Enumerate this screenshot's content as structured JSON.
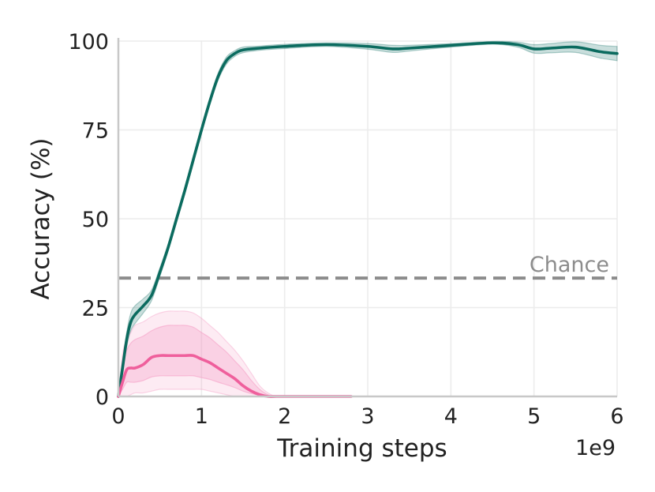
{
  "chart_data": {
    "type": "line",
    "xlabel": "Training steps",
    "ylabel": "Accuracy (%)",
    "x_offset_label": "1e9",
    "xlim": [
      0,
      6
    ],
    "ylim": [
      0,
      100
    ],
    "x_ticks": [
      0,
      1,
      2,
      3,
      4,
      5,
      6
    ],
    "y_ticks": [
      0,
      25,
      50,
      75,
      100
    ],
    "grid": true,
    "reference_line": {
      "label": "Chance",
      "y": 33.3,
      "color": "#8c8c8c",
      "style": "dashed"
    },
    "series": [
      {
        "color": "#0b6b5f",
        "band_color": "#0b6b5f",
        "x": [
          0,
          0.05,
          0.1,
          0.15,
          0.2,
          0.3,
          0.4,
          0.5,
          0.6,
          0.7,
          0.8,
          0.9,
          1.0,
          1.1,
          1.2,
          1.3,
          1.4,
          1.5,
          1.7,
          2.0,
          2.5,
          3.0,
          3.3,
          3.5,
          4.0,
          4.5,
          4.8,
          5.0,
          5.2,
          5.5,
          5.8,
          6.0
        ],
        "values": [
          0,
          8,
          16,
          21,
          23,
          25.5,
          28.5,
          35,
          42,
          50,
          58,
          66.5,
          75,
          83,
          90,
          94.5,
          96.5,
          97.5,
          98,
          98.5,
          99,
          98.5,
          97.8,
          98,
          98.8,
          99.5,
          99,
          97.8,
          98,
          98.3,
          97,
          96.5
        ],
        "band_width": [
          0,
          1,
          2,
          2.5,
          2.5,
          2,
          1.5,
          1.2,
          1,
          1,
          1,
          1,
          1,
          1,
          1,
          1,
          0.8,
          0.8,
          0.6,
          0.6,
          0.5,
          0.8,
          1,
          0.8,
          0.5,
          0.4,
          0.7,
          1.2,
          1.3,
          1.5,
          1.8,
          2
        ]
      },
      {
        "color": "#ef5f9c",
        "band_color": "#f48fbd",
        "x": [
          0,
          0.05,
          0.1,
          0.15,
          0.2,
          0.3,
          0.4,
          0.5,
          0.6,
          0.7,
          0.8,
          0.9,
          1.0,
          1.1,
          1.2,
          1.3,
          1.4,
          1.5,
          1.6,
          1.7,
          1.8,
          1.9,
          2.0,
          2.5,
          2.8
        ],
        "values": [
          0,
          4,
          7.5,
          8,
          8,
          9,
          11,
          11.5,
          11.5,
          11.5,
          11.5,
          11.5,
          10.5,
          9.5,
          8,
          6.5,
          5,
          3,
          1.5,
          0.5,
          0,
          0,
          0,
          0,
          0
        ],
        "band_low": [
          0,
          0,
          0,
          0.5,
          1,
          1,
          1.5,
          2,
          2,
          2,
          2,
          2,
          2,
          1.5,
          1,
          0.5,
          0,
          0,
          0,
          0,
          0,
          0,
          0,
          0,
          0
        ],
        "band_high": [
          0,
          12,
          16,
          18,
          20,
          21,
          22.5,
          23.5,
          24,
          24,
          24,
          23.5,
          22,
          20,
          18,
          15.5,
          13,
          10,
          6.5,
          3,
          1,
          0,
          0,
          0,
          0
        ],
        "band_mid_low": [
          0,
          2,
          4,
          4,
          4,
          4.5,
          5.5,
          5.8,
          5.8,
          5.8,
          5.8,
          5.8,
          5.3,
          4.8,
          4,
          3.3,
          2.5,
          1.5,
          0.8,
          0.3,
          0,
          0,
          0,
          0,
          0
        ],
        "band_mid_high": [
          0,
          9,
          13,
          15,
          16,
          17,
          18.5,
          19.5,
          20,
          20,
          20,
          19.5,
          18,
          16.5,
          14.5,
          12.5,
          10,
          7.5,
          4.5,
          2,
          0.5,
          0,
          0,
          0,
          0
        ]
      }
    ]
  }
}
